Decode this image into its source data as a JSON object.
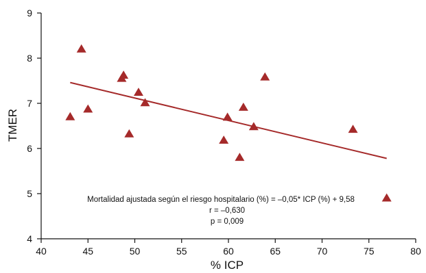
{
  "chart_data": {
    "type": "scatter",
    "title": "",
    "xlabel": "% ICP",
    "ylabel": "TMER",
    "xlim": [
      40,
      80
    ],
    "ylim": [
      4,
      9
    ],
    "xticks": [
      40,
      45,
      50,
      55,
      60,
      65,
      70,
      75,
      80
    ],
    "yticks": [
      4,
      5,
      6,
      7,
      8,
      9
    ],
    "grid": false,
    "marker": "triangle",
    "colors": {
      "marker": "#A52A2A",
      "line": "#A52A2A",
      "axis": "#111111"
    },
    "points": [
      {
        "x": 43.1,
        "y": 6.7
      },
      {
        "x": 44.3,
        "y": 8.2
      },
      {
        "x": 45.0,
        "y": 6.87
      },
      {
        "x": 48.6,
        "y": 7.55
      },
      {
        "x": 48.8,
        "y": 7.62
      },
      {
        "x": 49.4,
        "y": 6.32
      },
      {
        "x": 50.4,
        "y": 7.24
      },
      {
        "x": 51.1,
        "y": 7.01
      },
      {
        "x": 59.5,
        "y": 6.18
      },
      {
        "x": 59.9,
        "y": 6.69
      },
      {
        "x": 61.2,
        "y": 5.8
      },
      {
        "x": 61.6,
        "y": 6.91
      },
      {
        "x": 62.7,
        "y": 6.48
      },
      {
        "x": 63.9,
        "y": 7.58
      },
      {
        "x": 73.3,
        "y": 6.42
      },
      {
        "x": 76.9,
        "y": 4.9
      }
    ],
    "trendline": {
      "x": [
        43.1,
        76.9
      ],
      "y": [
        7.46,
        5.78
      ]
    },
    "annotations": [
      "Mortalidad ajustada según el riesgo hospitalario (%) = –0,05* ICP (%) + 9,58",
      "r = –0,630",
      "p = 0,009"
    ]
  }
}
